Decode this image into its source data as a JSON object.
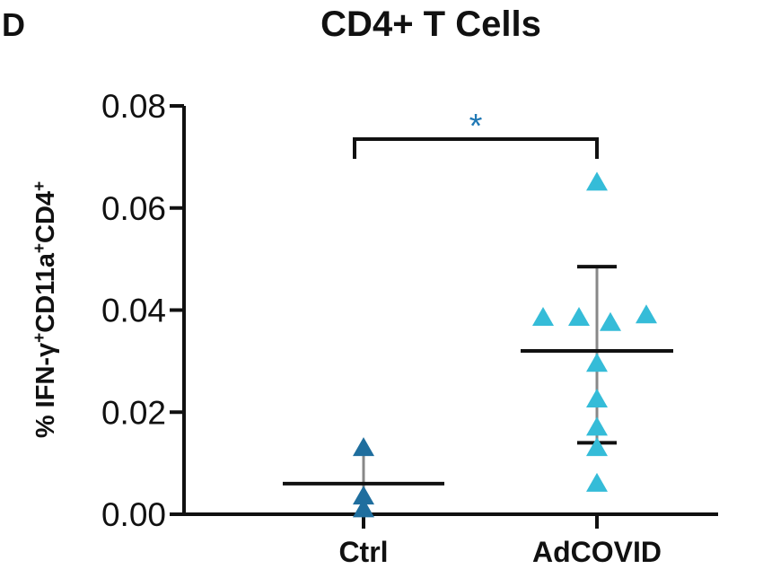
{
  "panel_letter": "D",
  "chart_data": {
    "type": "scatter",
    "title": "CD4+ T Cells",
    "xlabel": "",
    "ylabel_parts": [
      {
        "t": "% IFN-γ",
        "sup": false
      },
      {
        "t": "+",
        "sup": true
      },
      {
        "t": "CD11a",
        "sup": false
      },
      {
        "t": "+",
        "sup": true
      },
      {
        "t": "CD4",
        "sup": false
      },
      {
        "t": "+",
        "sup": true
      }
    ],
    "ylim": [
      0,
      0.08
    ],
    "yticks": [
      "0.00",
      "0.02",
      "0.04",
      "0.06",
      "0.08"
    ],
    "grid": false,
    "categories": [
      "Ctrl",
      "AdCOVID"
    ],
    "groups": [
      {
        "category": "Ctrl",
        "color": "#1f6e9e",
        "marker": "triangle",
        "points": [
          0.013,
          0.0035,
          0.001
        ],
        "mean": 0.006,
        "error_low": 0.001,
        "error_high": 0.013
      },
      {
        "category": "AdCOVID",
        "color": "#35bcd8",
        "marker": "triangle",
        "points": [
          0.065,
          0.0385,
          0.0385,
          0.0375,
          0.039,
          0.0295,
          0.0225,
          0.017,
          0.013,
          0.006
        ],
        "mean": 0.032,
        "error_low": 0.014,
        "error_high": 0.0485
      }
    ],
    "significance": {
      "between": [
        "Ctrl",
        "AdCOVID"
      ],
      "label": "*",
      "color": "#1f78b4"
    }
  }
}
